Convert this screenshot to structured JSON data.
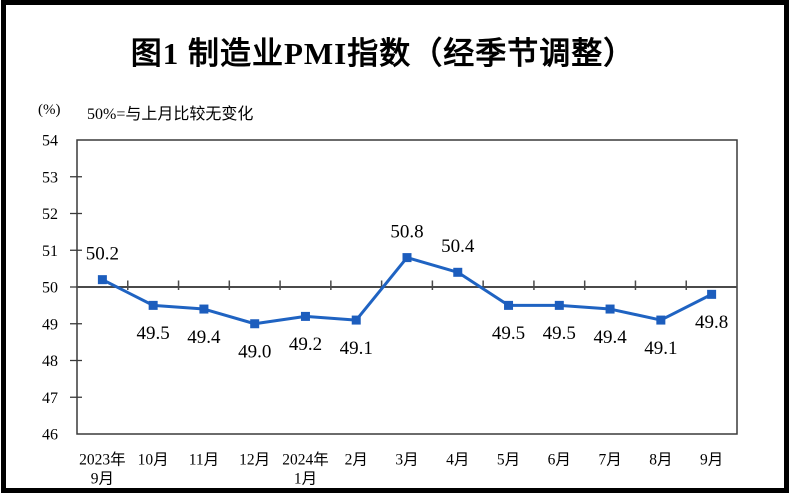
{
  "chart_data": {
    "type": "line",
    "title": "图1 制造业PMI指数（经季节调整）",
    "unit_label": "(%)",
    "annotation": "50%=与上月比较无变化",
    "categories": [
      [
        "2023年",
        "9月"
      ],
      [
        "10月"
      ],
      [
        "11月"
      ],
      [
        "12月"
      ],
      [
        "2024年",
        "1月"
      ],
      [
        "2月"
      ],
      [
        "3月"
      ],
      [
        "4月"
      ],
      [
        "5月"
      ],
      [
        "6月"
      ],
      [
        "7月"
      ],
      [
        "8月"
      ],
      [
        "9月"
      ]
    ],
    "values": [
      50.2,
      49.5,
      49.4,
      49.0,
      49.2,
      49.1,
      50.8,
      50.4,
      49.5,
      49.5,
      49.4,
      49.1,
      49.8
    ],
    "data_labels": [
      "50.2",
      "49.5",
      "49.4",
      "49.0",
      "49.2",
      "49.1",
      "50.8",
      "50.4",
      "49.5",
      "49.5",
      "49.4",
      "49.1",
      "49.8"
    ],
    "ylim": [
      46,
      54
    ],
    "y_tick_step": 1,
    "reference_line": 50,
    "grid": "off",
    "legend": "none",
    "marker": "square",
    "line_color": "#1f63c2",
    "marker_color": "#1c5dbd",
    "axis_color": "#3a3a3a",
    "reference_line_color": "#4a4a4a",
    "text_color": "#000000",
    "label_rule": "labels above points when value >= 50, below otherwise"
  }
}
